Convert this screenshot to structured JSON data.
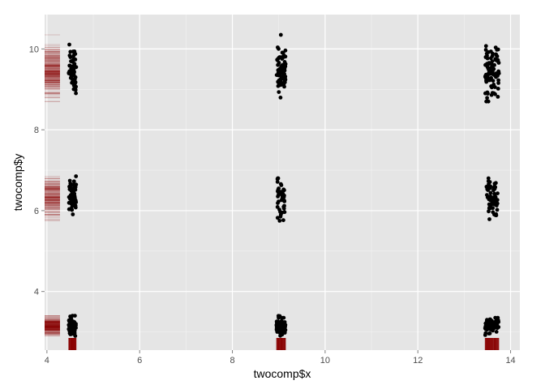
{
  "chart_data": {
    "type": "scatter",
    "title": "",
    "xlabel": "twocomp$x",
    "ylabel": "twocomp$y",
    "xlim": [
      3.95,
      14.2
    ],
    "ylim": [
      2.55,
      10.85
    ],
    "x_ticks": [
      4,
      6,
      8,
      10,
      12,
      14
    ],
    "y_ticks": [
      4,
      6,
      8,
      10
    ],
    "grid": true,
    "background": "#e5e5e5",
    "grid_color": "#ffffff",
    "point_color": "#000000",
    "rug_color": "#8b0000",
    "clusters": [
      {
        "x_center": 4.55,
        "y_center": 9.5,
        "x_jitter": 0.08,
        "y_spread": 0.3,
        "n": 60,
        "y_min": 8.8,
        "y_max": 10.3
      },
      {
        "x_center": 4.55,
        "y_center": 6.35,
        "x_jitter": 0.08,
        "y_spread": 0.25,
        "n": 55,
        "y_min": 5.75,
        "y_max": 6.85
      },
      {
        "x_center": 4.55,
        "y_center": 3.15,
        "x_jitter": 0.08,
        "y_spread": 0.12,
        "n": 55,
        "y_min": 2.9,
        "y_max": 3.4
      },
      {
        "x_center": 9.05,
        "y_center": 9.45,
        "x_jitter": 0.1,
        "y_spread": 0.3,
        "n": 75,
        "y_min": 8.75,
        "y_max": 10.35
      },
      {
        "x_center": 9.05,
        "y_center": 6.35,
        "x_jitter": 0.08,
        "y_spread": 0.25,
        "n": 45,
        "y_min": 5.75,
        "y_max": 6.8
      },
      {
        "x_center": 9.05,
        "y_center": 3.15,
        "x_jitter": 0.1,
        "y_spread": 0.12,
        "n": 60,
        "y_min": 2.85,
        "y_max": 3.45
      },
      {
        "x_center": 13.6,
        "y_center": 9.45,
        "x_jitter": 0.15,
        "y_spread": 0.3,
        "n": 95,
        "y_min": 8.7,
        "y_max": 10.4
      },
      {
        "x_center": 13.6,
        "y_center": 6.3,
        "x_jitter": 0.12,
        "y_spread": 0.25,
        "n": 70,
        "y_min": 5.6,
        "y_max": 6.8
      },
      {
        "x_center": 13.6,
        "y_center": 3.15,
        "x_jitter": 0.15,
        "y_spread": 0.1,
        "n": 80,
        "y_min": 2.9,
        "y_max": 3.35
      }
    ]
  }
}
